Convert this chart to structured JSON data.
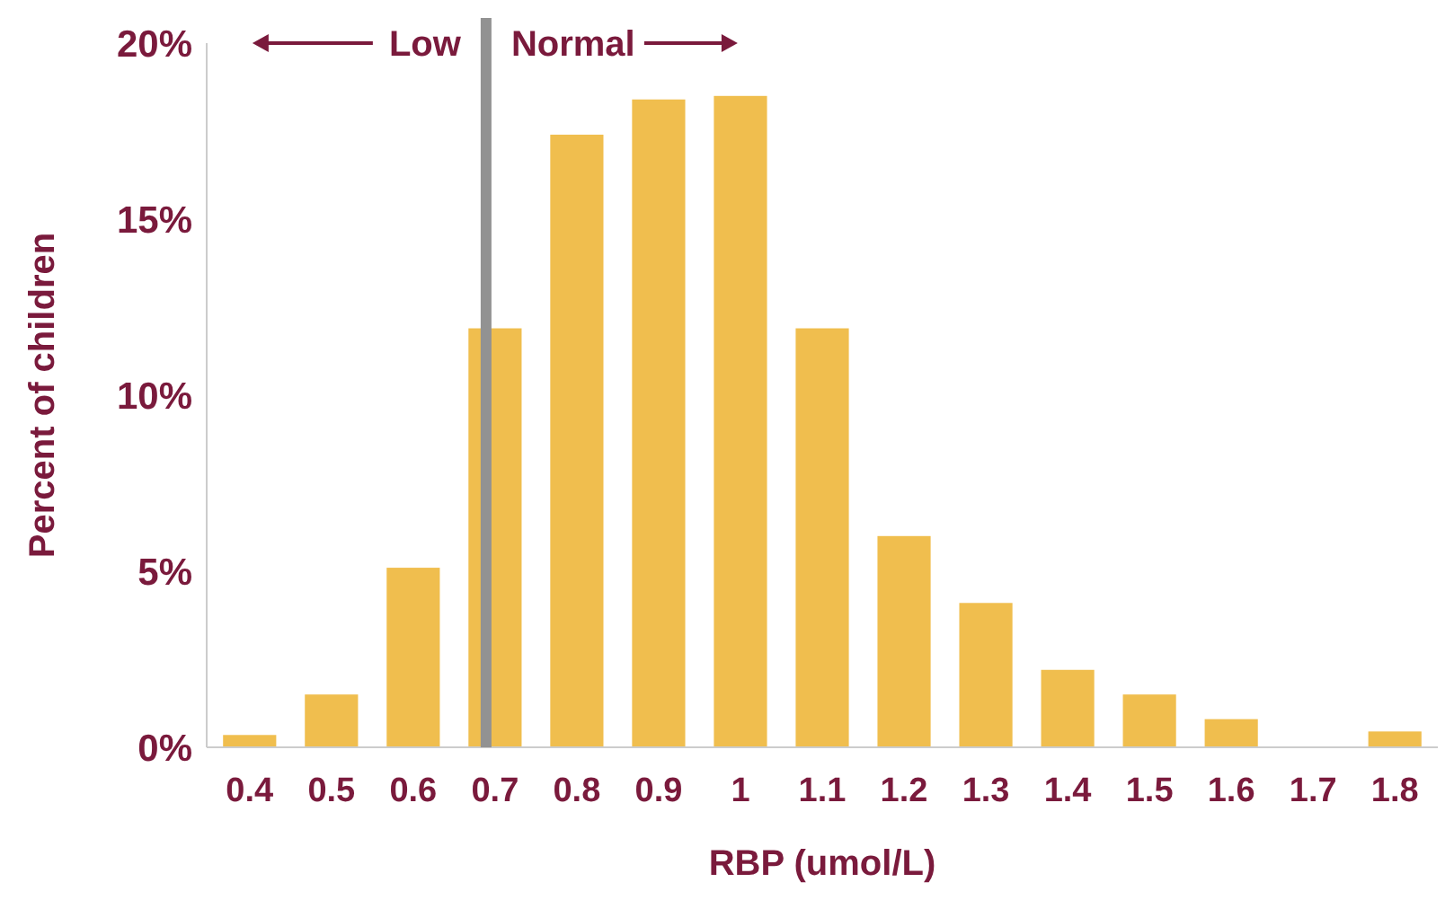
{
  "chart_data": {
    "type": "bar",
    "xlabel": "RBP (umol/L)",
    "ylabel": "Percent of children",
    "categories": [
      "0.4",
      "0.5",
      "0.6",
      "0.7",
      "0.8",
      "0.9",
      "1",
      "1.1",
      "1.2",
      "1.3",
      "1.4",
      "1.5",
      "1.6",
      "1.7",
      "1.8"
    ],
    "values": [
      0.35,
      1.5,
      5.1,
      11.9,
      17.4,
      18.4,
      18.5,
      11.9,
      6.0,
      4.1,
      2.2,
      1.5,
      0.8,
      0,
      0.45
    ],
    "color": "#f0be4e",
    "ylim": [
      0,
      20
    ],
    "yticks": [
      {
        "value": 0,
        "label": "0%"
      },
      {
        "value": 5,
        "label": "5%"
      },
      {
        "value": 10,
        "label": "10%"
      },
      {
        "value": 15,
        "label": "15%"
      },
      {
        "value": 20,
        "label": "20%"
      }
    ],
    "grid": false,
    "ref_lines": [
      {
        "axis": "x",
        "value": "0.7",
        "color": "#929292"
      }
    ],
    "annotations": [
      {
        "text": "Low",
        "x": "0.7",
        "y": 20
      },
      {
        "text": "Normal",
        "x": "0.7",
        "y": 20
      }
    ]
  }
}
